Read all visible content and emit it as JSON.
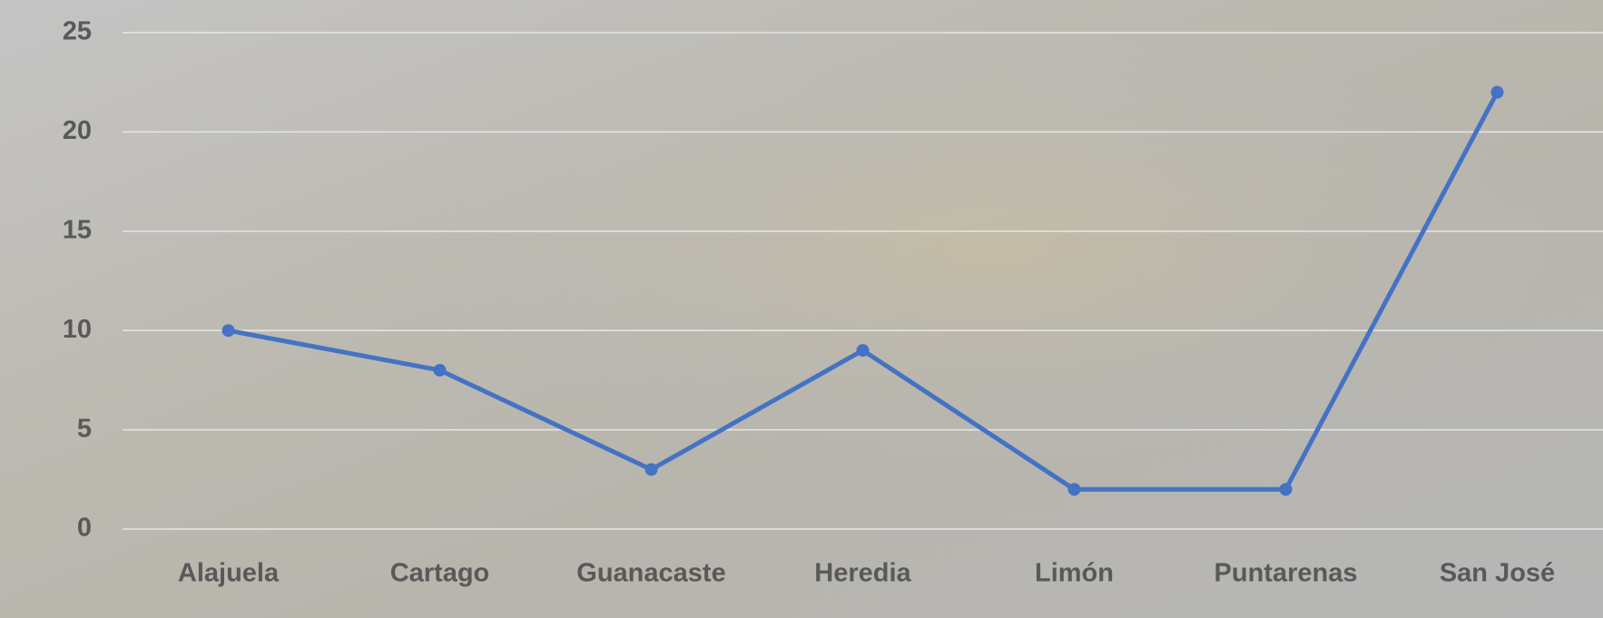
{
  "chart_data": {
    "type": "line",
    "categories": [
      "Alajuela",
      "Cartago",
      "Guanacaste",
      "Heredia",
      "Limón",
      "Puntarenas",
      "San José"
    ],
    "values": [
      10,
      8,
      3,
      9,
      2,
      2,
      22
    ],
    "color": "#4472c4",
    "ylim": [
      0,
      25
    ],
    "yticks": [
      0,
      5,
      10,
      15,
      20,
      25
    ],
    "grid": true
  }
}
